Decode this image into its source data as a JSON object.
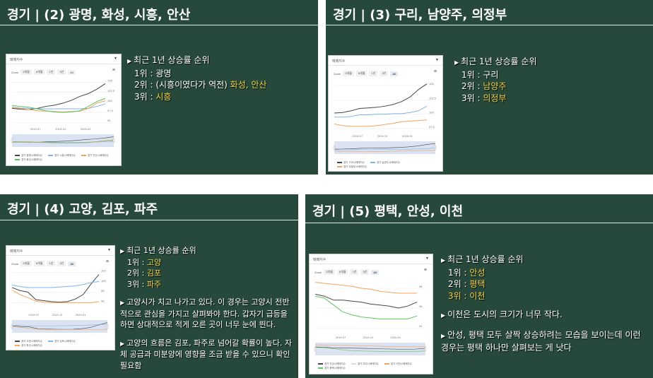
{
  "colors": {
    "slide_bg": "#27493b",
    "highlight": "#f3d34a"
  },
  "slides": [
    {
      "title": "경기 | (2) 광명, 화성, 시흥, 안산",
      "lines": [
        {
          "bullet": true,
          "segs": [
            {
              "t": "최근 1년 상승률 순위"
            }
          ]
        },
        {
          "indent": true,
          "segs": [
            {
              "t": "1위 : 광명"
            }
          ]
        },
        {
          "indent": true,
          "segs": [
            {
              "t": "2위 : (시흥이였다가 역전) "
            },
            {
              "t": "화성, 안산",
              "hl": true
            }
          ]
        },
        {
          "indent": true,
          "segs": [
            {
              "t": "3위 : "
            },
            {
              "t": "시흥",
              "hl": true
            }
          ]
        }
      ]
    },
    {
      "title": "경기 | (3) 구리, 남양주, 의정부",
      "lines": [
        {
          "bullet": true,
          "segs": [
            {
              "t": "최근 1년 상승률 순위"
            }
          ]
        },
        {
          "indent": true,
          "segs": [
            {
              "t": "1위 : 구리"
            }
          ]
        },
        {
          "indent": true,
          "segs": [
            {
              "t": "2위 : "
            },
            {
              "t": "남양주",
              "hl": true
            }
          ]
        },
        {
          "indent": true,
          "segs": [
            {
              "t": "3위 : "
            },
            {
              "t": "의정부",
              "hl": true
            }
          ]
        }
      ]
    },
    {
      "title": "경기 | (4) 고양, 김포, 파주",
      "lines": [
        {
          "bullet": true,
          "segs": [
            {
              "t": "최근 1년 상승률 순위"
            }
          ]
        },
        {
          "indent": true,
          "segs": [
            {
              "t": "1위 : "
            },
            {
              "t": "고양",
              "hl": true
            }
          ]
        },
        {
          "indent": true,
          "segs": [
            {
              "t": "2위 : "
            },
            {
              "t": "김포",
              "hl": true
            }
          ]
        },
        {
          "indent": true,
          "segs": [
            {
              "t": "3위 : "
            },
            {
              "t": "파주",
              "hl": true
            }
          ]
        },
        {
          "gap": true,
          "segs": []
        },
        {
          "bullet": true,
          "segs": [
            {
              "t": "고양시가 치고 나가고 있다. 이 경우는 고양시 전반적으로 관심을 가지고 살펴봐야 한다. 갑자기 급등을 하면 상대적으로 적게 오른 곳이 너무 눈에 띈다."
            }
          ]
        },
        {
          "gap": true,
          "segs": []
        },
        {
          "bullet": true,
          "segs": [
            {
              "t": "고양의 흐름은 김포, 파주로 넘어갈 확률이 높다. 자체 공급과 미분양에 영향을 조금 받을 수 있으니 확인 필요함"
            }
          ]
        }
      ]
    },
    {
      "title": "경기 | (5) 평택, 안성, 이천",
      "lines": [
        {
          "bullet": true,
          "segs": [
            {
              "t": "최근 1년 상승률 순위"
            }
          ]
        },
        {
          "indent": true,
          "segs": [
            {
              "t": "1위 : "
            },
            {
              "t": "안성",
              "hl": true
            }
          ]
        },
        {
          "indent": true,
          "segs": [
            {
              "t": "2위 : "
            },
            {
              "t": "평택",
              "hl": true
            }
          ]
        },
        {
          "indent": true,
          "segs": [
            {
              "t": "3위 : 이천",
              "hl": true
            }
          ]
        },
        {
          "gap": true,
          "segs": []
        },
        {
          "bullet": true,
          "segs": [
            {
              "t": "이천은 도시의 크기가 너무 작다."
            }
          ]
        },
        {
          "gap": true,
          "segs": []
        },
        {
          "bullet": true,
          "segs": [
            {
              "t": "안성, 평택 모두 살짝 상승하려는 모습을 보이는데 이런 경우는 평택 하나만 살펴보는 게 낫다"
            }
          ]
        }
      ]
    }
  ],
  "chart_data": [
    {
      "type": "line",
      "title": "매매지수",
      "zoom_label": "Zoom",
      "zoom_buttons": [
        "3개월",
        "6개월",
        "1년",
        "3년",
        "All"
      ],
      "active": -1,
      "xticks": [
        "2019-07",
        "2019-10",
        "2020-01"
      ],
      "ylim": [
        94.5,
        106
      ],
      "yticks": [
        105,
        102.5,
        100,
        97.5,
        95
      ],
      "series": [
        {
          "name": "경기 광명시매매지수",
          "color": "#444444",
          "values": [
            98.5,
            98.3,
            98.2,
            98.5,
            99,
            99.3,
            99.8,
            100.5,
            101.5,
            102.2,
            103.3,
            104.7
          ]
        },
        {
          "name": "경기 시흥시매매지수",
          "color": "#7cb5ec",
          "values": [
            98.8,
            98.6,
            98.5,
            98.4,
            98.4,
            98.4,
            98.4,
            98.4,
            98.4,
            98.5,
            99,
            99.6
          ]
        },
        {
          "name": "경기 안산시매매지수",
          "color": "#f7a35c",
          "values": [
            98.7,
            98.5,
            98.2,
            97.9,
            97.8,
            97.7,
            97.6,
            97.7,
            97.8,
            98.5,
            99.8,
            100.4
          ]
        },
        {
          "name": "경기 화성시매매지수",
          "color": "#5fc35f",
          "values": [
            99.2,
            99,
            98.8,
            98.4,
            97.9,
            97.6,
            97.5,
            97.6,
            97.9,
            99,
            100.2,
            101
          ]
        }
      ]
    },
    {
      "type": "line",
      "title": "매매지수",
      "zoom_label": "Zoom",
      "zoom_buttons": [
        "3개월",
        "6개월",
        "1년",
        "3년",
        "All"
      ],
      "active": 4,
      "xticks": [
        "2019-07",
        "2019-10",
        "2020-01"
      ],
      "ylim": [
        97,
        106
      ],
      "yticks": [
        105,
        102.5,
        100,
        97.5
      ],
      "series": [
        {
          "name": "경기 구리시매매지수",
          "color": "#444444",
          "values": [
            100.2,
            100.3,
            100.6,
            101,
            101.1,
            101.2,
            101.4,
            101.7,
            102.2,
            103,
            104.3,
            105.3
          ]
        },
        {
          "name": "경기 남양주시매매지수",
          "color": "#7cb5ec",
          "values": [
            99.5,
            99.5,
            99.6,
            99.9,
            99.9,
            100,
            100,
            100.1,
            100.1,
            100.3,
            100.6,
            101.4
          ]
        },
        {
          "name": "경기 의정부시매매지수",
          "color": "#f7a35c",
          "values": [
            98.3,
            98,
            97.9,
            97.9,
            97.9,
            98,
            98.2,
            98.4,
            98.7,
            98.8,
            98.9,
            99
          ]
        }
      ]
    },
    {
      "type": "line",
      "title": "매매지수",
      "zoom_label": "Zoom",
      "zoom_buttons": [
        "3개월",
        "6개월",
        "1년",
        "3년",
        "All"
      ],
      "active": 4,
      "xticks": [
        "2019-07",
        "2019-10",
        "2020-01"
      ],
      "ylim": [
        94.5,
        102.5
      ],
      "yticks": [
        102,
        100,
        98,
        96
      ],
      "series": [
        {
          "name": "경기 고양시매매지수",
          "color": "#444444",
          "values": [
            99,
            98.4,
            98.1,
            96.6,
            96.4,
            96.2,
            96.1,
            96.2,
            96.7,
            97.6,
            99.7,
            101.6
          ]
        },
        {
          "name": "경기 김포시매매지수",
          "color": "#7cb5ec",
          "values": [
            99.5,
            99.2,
            99,
            99,
            99,
            99,
            99.1,
            99.2,
            99.3,
            99.6,
            100,
            100.2
          ]
        },
        {
          "name": "경기 파주시매매지수",
          "color": "#f7a35c",
          "values": [
            98.5,
            97.6,
            97,
            96.3,
            96.1,
            96,
            96,
            96,
            96,
            96,
            96,
            96.2
          ]
        }
      ]
    },
    {
      "type": "line",
      "title": "매매지수",
      "zoom_label": "Zoom",
      "zoom_buttons": [
        "3개월",
        "6개월",
        "1년",
        "3년",
        "All"
      ],
      "active": 4,
      "xticks": [
        "2019-07",
        "2019-10",
        "2020-01"
      ],
      "ylim": [
        93.5,
        99
      ],
      "yticks": [
        98,
        96,
        94
      ],
      "series": [
        {
          "name": "경기 안성시매매지수",
          "color": "#444444",
          "values": [
            97.4,
            97.2,
            96.8,
            96.8,
            96.7,
            96.6,
            96.4,
            96.3,
            96.2,
            96,
            96.2,
            96.6
          ]
        },
        {
          "name": "경기 여주시매매지수",
          "color": "#dddddd",
          "values": []
        },
        {
          "name": "경기 이천시매매지수",
          "color": "#f7a35c",
          "values": [
            98.6,
            98.5,
            98.4,
            98.3,
            98.2,
            98,
            97.9,
            97.7,
            97.6,
            97.5,
            97.5,
            97.5
          ]
        },
        {
          "name": "경기 평택시매매지수",
          "color": "#5fc35f",
          "values": [
            97.2,
            97,
            96.3,
            95.6,
            95.3,
            95.1,
            95,
            94.9,
            94.9,
            94.9,
            94.9,
            95.2
          ]
        }
      ]
    }
  ]
}
